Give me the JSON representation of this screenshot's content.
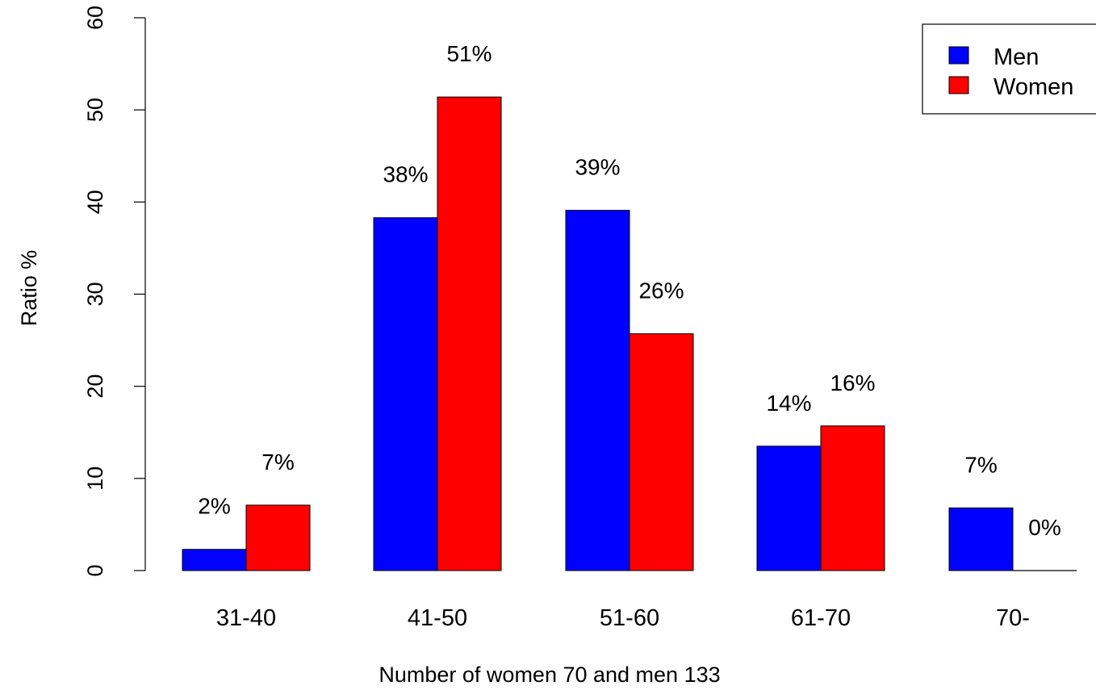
{
  "chart_data": {
    "type": "bar",
    "categories": [
      "31-40",
      "41-50",
      "51-60",
      "61-70",
      "70-"
    ],
    "series": [
      {
        "name": "Men",
        "color": "#0000ff",
        "values": [
          2.3,
          38.3,
          39.1,
          13.5,
          6.8
        ],
        "labels": [
          "2%",
          "38%",
          "39%",
          "14%",
          "7%"
        ]
      },
      {
        "name": "Women",
        "color": "#ff0000",
        "values": [
          7.1,
          51.4,
          25.7,
          15.7,
          0
        ],
        "labels": [
          "7%",
          "51%",
          "26%",
          "16%",
          "0%"
        ]
      }
    ],
    "xlabel": "Number of women 70 and men 133",
    "ylabel": "Ratio %",
    "ylim": [
      0,
      60
    ],
    "yticks": [
      0,
      10,
      20,
      30,
      40,
      50,
      60
    ],
    "grid": false,
    "legend_position": "top-right"
  }
}
